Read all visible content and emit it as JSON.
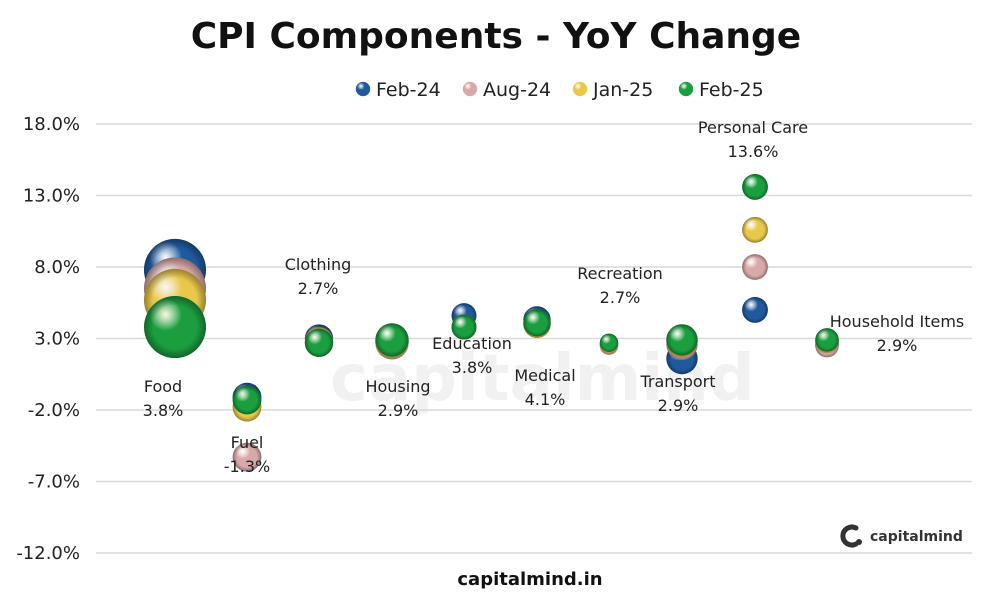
{
  "chart_data": {
    "type": "scatter",
    "title": "CPI Components - YoY Change",
    "legend_position": "top",
    "grid": true,
    "ylim": [
      -12,
      18
    ],
    "y_ticks": [
      "18.0%",
      "13.0%",
      "8.0%",
      "3.0%",
      "-2.0%",
      "-7.0%",
      "-12.0%"
    ],
    "y_tick_values": [
      18,
      13,
      8,
      3,
      -2,
      -7,
      -12
    ],
    "categories": [
      "Food",
      "Fuel",
      "Clothing",
      "Housing",
      "Education",
      "Medical",
      "Recreation",
      "Transport",
      "Personal Care",
      "Household Items"
    ],
    "series": [
      {
        "name": "Feb-24",
        "color": "#1f5a9e",
        "values": [
          7.8,
          -1.1,
          3.0,
          2.8,
          4.6,
          4.3,
          2.6,
          1.6,
          5.0,
          2.6
        ]
      },
      {
        "name": "Aug-24",
        "color": "#d9a8a8",
        "values": [
          6.5,
          -5.3,
          2.7,
          2.7,
          3.8,
          4.0,
          2.5,
          2.6,
          8.0,
          2.5
        ]
      },
      {
        "name": "Jan-25",
        "color": "#e8c84a",
        "values": [
          5.7,
          -1.8,
          2.8,
          2.8,
          3.8,
          4.0,
          2.6,
          2.8,
          10.6,
          2.8
        ]
      },
      {
        "name": "Feb-25",
        "color": "#1a9e3f",
        "values": [
          3.8,
          -1.3,
          2.7,
          2.9,
          3.8,
          4.1,
          2.7,
          2.9,
          13.6,
          2.9
        ]
      }
    ],
    "weights": [
      45.9,
      6.8,
      6.5,
      10.1,
      4.5,
      5.9,
      1.7,
      8.6,
      5.0,
      3.8
    ],
    "data_labels": [
      {
        "name": "Food",
        "value": "3.8%"
      },
      {
        "name": "Fuel",
        "value": "-1.3%"
      },
      {
        "name": "Clothing",
        "value": "2.7%"
      },
      {
        "name": "Housing",
        "value": "2.9%"
      },
      {
        "name": "Education",
        "value": "3.8%"
      },
      {
        "name": "Medical",
        "value": "4.1%"
      },
      {
        "name": "Recreation",
        "value": "2.7%"
      },
      {
        "name": "Transport",
        "value": "2.9%"
      },
      {
        "name": "Personal Care",
        "value": "13.6%"
      },
      {
        "name": "Household Items",
        "value": "2.9%"
      }
    ]
  },
  "footer": "capitalmind.in",
  "brand": "capitalmind",
  "watermark": "capitalmind"
}
